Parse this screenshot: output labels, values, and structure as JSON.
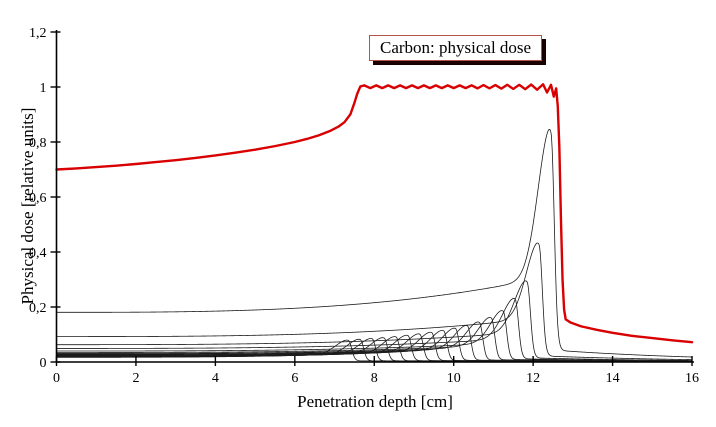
{
  "title_box": {
    "label": "Carbon: physical dose"
  },
  "axes": {
    "x": {
      "label": "Penetration depth [cm]",
      "tick_labels": [
        "0",
        "2",
        "4",
        "6",
        "8",
        "10",
        "12",
        "14",
        "16"
      ],
      "tick_values": [
        0,
        2,
        4,
        6,
        8,
        10,
        12,
        14,
        16
      ],
      "range": [
        0,
        16
      ]
    },
    "y": {
      "label": "Physical dose [relative units]",
      "tick_labels": [
        "0",
        "0,2",
        "0,4",
        "0,6",
        "0,8",
        "1",
        "1,2"
      ],
      "tick_values": [
        0,
        0.2,
        0.4,
        0.6,
        0.8,
        1.0,
        1.2
      ],
      "range": [
        0,
        1.2
      ]
    }
  },
  "colors": {
    "total_curve": "#d80000",
    "pristine_curve": "#1c1c1c",
    "axis": "#000000",
    "box_border": "#b5534f",
    "box_shadow": "#1a0000",
    "background": "#ffffff"
  },
  "chart_data": {
    "type": "line",
    "title": "Carbon: physical dose",
    "xlabel": "Penetration depth [cm]",
    "ylabel": "Physical dose [relative units]",
    "xlim": [
      0,
      16
    ],
    "ylim": [
      0,
      1.2
    ],
    "grid": false,
    "legend_position": "none",
    "series": [
      {
        "name": "total-physical-dose-sobp",
        "color": "#d80000",
        "points": [
          [
            0,
            0.7
          ],
          [
            0.5,
            0.704
          ],
          [
            1,
            0.709
          ],
          [
            1.5,
            0.714
          ],
          [
            2,
            0.72
          ],
          [
            2.5,
            0.727
          ],
          [
            3,
            0.734
          ],
          [
            3.5,
            0.742
          ],
          [
            4,
            0.751
          ],
          [
            4.5,
            0.761
          ],
          [
            5,
            0.772
          ],
          [
            5.5,
            0.785
          ],
          [
            6,
            0.8
          ],
          [
            6.3,
            0.811
          ],
          [
            6.6,
            0.824
          ],
          [
            6.9,
            0.841
          ],
          [
            7.1,
            0.856
          ],
          [
            7.25,
            0.872
          ],
          [
            7.4,
            0.901
          ],
          [
            7.5,
            0.942
          ],
          [
            7.57,
            0.975
          ],
          [
            7.65,
            1.002
          ],
          [
            7.75,
            1.006
          ],
          [
            7.9,
            0.996
          ],
          [
            8.05,
            1.006
          ],
          [
            8.2,
            0.996
          ],
          [
            8.35,
            1.006
          ],
          [
            8.5,
            0.996
          ],
          [
            8.65,
            1.006
          ],
          [
            8.8,
            0.996
          ],
          [
            8.95,
            1.006
          ],
          [
            9.1,
            0.996
          ],
          [
            9.25,
            1.006
          ],
          [
            9.4,
            0.996
          ],
          [
            9.55,
            1.006
          ],
          [
            9.7,
            0.996
          ],
          [
            9.85,
            1.006
          ],
          [
            10.0,
            0.996
          ],
          [
            10.15,
            1.006
          ],
          [
            10.3,
            0.996
          ],
          [
            10.45,
            1.006
          ],
          [
            10.6,
            0.995
          ],
          [
            10.75,
            1.007
          ],
          [
            10.9,
            0.995
          ],
          [
            11.05,
            1.007
          ],
          [
            11.2,
            0.994
          ],
          [
            11.35,
            1.008
          ],
          [
            11.5,
            0.993
          ],
          [
            11.65,
            1.008
          ],
          [
            11.8,
            0.992
          ],
          [
            11.95,
            1.009
          ],
          [
            12.1,
            0.99
          ],
          [
            12.25,
            1.01
          ],
          [
            12.35,
            0.98
          ],
          [
            12.45,
            1.008
          ],
          [
            12.52,
            0.965
          ],
          [
            12.58,
            0.995
          ],
          [
            12.62,
            0.93
          ],
          [
            12.66,
            0.78
          ],
          [
            12.7,
            0.52
          ],
          [
            12.74,
            0.3
          ],
          [
            12.78,
            0.19
          ],
          [
            12.82,
            0.155
          ],
          [
            12.95,
            0.143
          ],
          [
            13.2,
            0.13
          ],
          [
            13.6,
            0.117
          ],
          [
            14.0,
            0.106
          ],
          [
            14.5,
            0.095
          ],
          [
            15.0,
            0.087
          ],
          [
            15.5,
            0.079
          ],
          [
            16.0,
            0.072
          ]
        ]
      },
      {
        "name": "pristine-bragg-peaks",
        "color": "#1c1c1c",
        "model": {
          "entrance_fraction": 0.21,
          "rise_coeff": 0.75,
          "rise_exponent": 3,
          "peak_offset": 0.1,
          "sigma_left": 0.32,
          "sigma_right": 0.08,
          "cutoff_width": 0.04,
          "tail_fraction": 0.05,
          "tail_decay": 4
        },
        "peaks": [
          {
            "range": 7.45,
            "peak": 0.081
          },
          {
            "range": 7.75,
            "peak": 0.084
          },
          {
            "range": 8.05,
            "peak": 0.087
          },
          {
            "range": 8.35,
            "peak": 0.09
          },
          {
            "range": 8.65,
            "peak": 0.094
          },
          {
            "range": 8.95,
            "peak": 0.099
          },
          {
            "range": 9.25,
            "peak": 0.104
          },
          {
            "range": 9.55,
            "peak": 0.11
          },
          {
            "range": 9.85,
            "peak": 0.117
          },
          {
            "range": 10.15,
            "peak": 0.125
          },
          {
            "range": 10.45,
            "peak": 0.135
          },
          {
            "range": 10.75,
            "peak": 0.148
          },
          {
            "range": 11.05,
            "peak": 0.165
          },
          {
            "range": 11.35,
            "peak": 0.19
          },
          {
            "range": 11.65,
            "peak": 0.235
          },
          {
            "range": 11.95,
            "peak": 0.3
          },
          {
            "range": 12.25,
            "peak": 0.44
          },
          {
            "range": 12.55,
            "peak": 0.86
          }
        ]
      }
    ]
  }
}
